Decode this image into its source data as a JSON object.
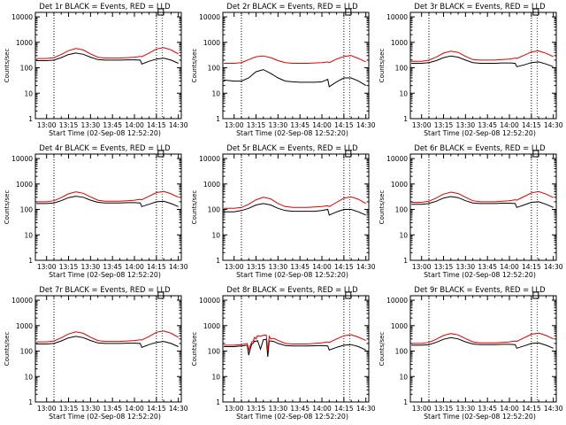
{
  "colors": {
    "events": "#000000",
    "lld": "#e00000",
    "background": "#ffffff"
  },
  "chart_data": [
    {
      "type": "line",
      "title": "Det 1r BLACK = Events, RED = LLD",
      "xlabel": "Start Time (02-Sep-08 12:52:20)",
      "ylabel": "Counts/sec",
      "log_y": true,
      "ylim": [
        1,
        15000
      ],
      "y_tick_labels": [
        "1",
        "10",
        "100",
        "1000",
        "10000"
      ],
      "xlim": [
        "12:52:20",
        "14:32:00"
      ],
      "x_tick_labels": [
        "13:00",
        "13:15",
        "13:30",
        "13:45",
        "14:00",
        "14:15",
        "14:30"
      ],
      "annotations": [
        "dashed vertical markers at 13:05, 14:15 (Events) and 14:19 (LLD)",
        "small square box near top at 14:18"
      ],
      "x": [
        "12:53",
        "13:00",
        "13:05",
        "13:10",
        "13:15",
        "13:20",
        "13:25",
        "13:30",
        "13:35",
        "13:40",
        "13:45",
        "13:50",
        "13:55",
        "14:00",
        "14:04",
        "14:05",
        "14:10",
        "14:15",
        "14:20",
        "14:25",
        "14:30"
      ],
      "series": [
        {
          "name": "Events",
          "values": [
            190,
            190,
            200,
            250,
            330,
            380,
            340,
            260,
            210,
            200,
            200,
            200,
            205,
            205,
            200,
            140,
            180,
            220,
            240,
            200,
            150
          ]
        },
        {
          "name": "LLD",
          "values": [
            230,
            230,
            250,
            330,
            470,
            570,
            500,
            350,
            260,
            240,
            240,
            240,
            250,
            260,
            280,
            270,
            380,
            550,
            620,
            500,
            350
          ]
        }
      ]
    },
    {
      "type": "line",
      "title": "Det 2r BLACK = Events, RED = LLD",
      "xlabel": "Start Time (02-Sep-08 12:52:20)",
      "ylabel": "Counts/sec",
      "log_y": true,
      "ylim": [
        1,
        15000
      ],
      "y_tick_labels": [
        "1",
        "10",
        "100",
        "1000",
        "10000"
      ],
      "xlim": [
        "12:52:20",
        "14:32:00"
      ],
      "x_tick_labels": [
        "13:00",
        "13:15",
        "13:30",
        "13:45",
        "14:00",
        "14:15",
        "14:30"
      ],
      "annotations": [
        "dashed vertical markers at 13:05, 14:15 (Events) and 14:19 (LLD)",
        "small square box near top at 14:18"
      ],
      "x": [
        "12:53",
        "13:00",
        "13:05",
        "13:10",
        "13:15",
        "13:20",
        "13:25",
        "13:30",
        "13:35",
        "13:40",
        "13:45",
        "13:50",
        "13:55",
        "14:00",
        "14:04",
        "14:05",
        "14:10",
        "14:15",
        "14:20",
        "14:25",
        "14:30"
      ],
      "series": [
        {
          "name": "Events",
          "values": [
            33,
            30,
            30,
            40,
            70,
            85,
            60,
            40,
            30,
            28,
            27,
            27,
            27,
            28,
            35,
            18,
            28,
            40,
            40,
            30,
            20
          ]
        },
        {
          "name": "LLD",
          "values": [
            150,
            150,
            160,
            210,
            270,
            290,
            250,
            190,
            160,
            150,
            150,
            150,
            155,
            160,
            170,
            160,
            220,
            280,
            300,
            230,
            170
          ]
        }
      ]
    },
    {
      "type": "line",
      "title": "Det 3r BLACK = Events, RED = LLD",
      "xlabel": "Start Time (02-Sep-08 12:52:20)",
      "ylabel": "Counts/sec",
      "log_y": true,
      "ylim": [
        1,
        15000
      ],
      "y_tick_labels": [
        "1",
        "10",
        "100",
        "1000",
        "10000"
      ],
      "xlim": [
        "12:52:20",
        "14:32:00"
      ],
      "x_tick_labels": [
        "13:00",
        "13:15",
        "13:30",
        "13:45",
        "14:00",
        "14:15",
        "14:30"
      ],
      "annotations": [
        "dashed vertical markers at 13:05, 14:15 (Events) and 14:19 (LLD)",
        "small square box near top at 14:18"
      ],
      "x": [
        "12:53",
        "13:00",
        "13:05",
        "13:10",
        "13:15",
        "13:20",
        "13:25",
        "13:30",
        "13:35",
        "13:40",
        "13:45",
        "13:50",
        "13:55",
        "14:00",
        "14:04",
        "14:05",
        "14:10",
        "14:15",
        "14:20",
        "14:25",
        "14:30"
      ],
      "series": [
        {
          "name": "Events",
          "values": [
            150,
            150,
            160,
            190,
            250,
            290,
            260,
            200,
            160,
            150,
            150,
            150,
            155,
            155,
            150,
            110,
            130,
            160,
            170,
            140,
            110
          ]
        },
        {
          "name": "LLD",
          "values": [
            180,
            180,
            200,
            260,
            380,
            450,
            400,
            280,
            210,
            200,
            200,
            200,
            210,
            220,
            240,
            230,
            310,
            420,
            460,
            370,
            270
          ]
        }
      ]
    },
    {
      "type": "line",
      "title": "Det 4r BLACK = Events, RED = LLD",
      "xlabel": "Start Time (02-Sep-08 12:52:20)",
      "ylabel": "Counts/sec",
      "log_y": true,
      "ylim": [
        1,
        15000
      ],
      "y_tick_labels": [
        "1",
        "10",
        "100",
        "1000",
        "10000"
      ],
      "xlim": [
        "12:52:20",
        "14:32:00"
      ],
      "x_tick_labels": [
        "13:00",
        "13:15",
        "13:30",
        "13:45",
        "14:00",
        "14:15",
        "14:30"
      ],
      "annotations": [
        "dashed vertical markers at 13:05, 14:15 (Events) and 14:19 (LLD)",
        "small square box near top at 14:18"
      ],
      "x": [
        "12:53",
        "13:00",
        "13:05",
        "13:10",
        "13:15",
        "13:20",
        "13:25",
        "13:30",
        "13:35",
        "13:40",
        "13:45",
        "13:50",
        "13:55",
        "14:00",
        "14:04",
        "14:05",
        "14:10",
        "14:15",
        "14:20",
        "14:25",
        "14:30"
      ],
      "series": [
        {
          "name": "Events",
          "values": [
            170,
            170,
            180,
            220,
            290,
            330,
            300,
            230,
            190,
            180,
            180,
            180,
            185,
            185,
            180,
            130,
            160,
            200,
            210,
            170,
            130
          ]
        },
        {
          "name": "LLD",
          "values": [
            200,
            200,
            220,
            290,
            410,
            490,
            430,
            310,
            230,
            210,
            210,
            210,
            220,
            230,
            250,
            240,
            330,
            460,
            510,
            410,
            300
          ]
        }
      ]
    },
    {
      "type": "line",
      "title": "Det 5r BLACK = Events, RED = LLD",
      "xlabel": "Start Time (02-Sep-08 12:52:20)",
      "ylabel": "Counts/sec",
      "log_y": true,
      "ylim": [
        1,
        15000
      ],
      "y_tick_labels": [
        "1",
        "10",
        "100",
        "1000",
        "10000"
      ],
      "xlim": [
        "12:52:20",
        "14:32:00"
      ],
      "x_tick_labels": [
        "13:00",
        "13:15",
        "13:30",
        "13:45",
        "14:00",
        "14:15",
        "14:30"
      ],
      "annotations": [
        "dashed vertical markers at 13:05, 14:15 (Events) and 14:19 (LLD)",
        "small square box near top at 14:18"
      ],
      "x": [
        "12:53",
        "13:00",
        "13:05",
        "13:10",
        "13:15",
        "13:20",
        "13:25",
        "13:30",
        "13:35",
        "13:40",
        "13:45",
        "13:50",
        "13:55",
        "14:00",
        "14:04",
        "14:05",
        "14:10",
        "14:15",
        "14:20",
        "14:25",
        "14:30"
      ],
      "series": [
        {
          "name": "Events",
          "values": [
            80,
            80,
            90,
            110,
            150,
            170,
            150,
            110,
            90,
            85,
            85,
            85,
            85,
            90,
            100,
            60,
            80,
            100,
            100,
            80,
            60
          ]
        },
        {
          "name": "LLD",
          "values": [
            110,
            110,
            120,
            160,
            240,
            300,
            260,
            170,
            130,
            120,
            120,
            120,
            125,
            130,
            140,
            130,
            190,
            280,
            310,
            250,
            170
          ]
        }
      ]
    },
    {
      "type": "line",
      "title": "Det 6r BLACK = Events, RED = LLD",
      "xlabel": "Start Time (02-Sep-08 12:52:20)",
      "ylabel": "Counts/sec",
      "log_y": true,
      "ylim": [
        1,
        15000
      ],
      "y_tick_labels": [
        "1",
        "10",
        "100",
        "1000",
        "10000"
      ],
      "xlim": [
        "12:52:20",
        "14:32:00"
      ],
      "x_tick_labels": [
        "13:00",
        "13:15",
        "13:30",
        "13:45",
        "14:00",
        "14:15",
        "14:30"
      ],
      "annotations": [
        "dashed vertical markers at 13:05, 14:15 (Events) and 14:19 (LLD)",
        "small square box near top at 14:18"
      ],
      "x": [
        "12:53",
        "13:00",
        "13:05",
        "13:10",
        "13:15",
        "13:20",
        "13:25",
        "13:30",
        "13:35",
        "13:40",
        "13:45",
        "13:50",
        "13:55",
        "14:00",
        "14:04",
        "14:05",
        "14:10",
        "14:15",
        "14:20",
        "14:25",
        "14:30"
      ],
      "series": [
        {
          "name": "Events",
          "values": [
            160,
            160,
            170,
            210,
            280,
            320,
            290,
            220,
            180,
            170,
            170,
            170,
            175,
            175,
            170,
            120,
            150,
            190,
            200,
            160,
            120
          ]
        },
        {
          "name": "LLD",
          "values": [
            190,
            190,
            210,
            280,
            400,
            480,
            420,
            300,
            220,
            200,
            200,
            200,
            210,
            220,
            240,
            230,
            320,
            450,
            500,
            400,
            290
          ]
        }
      ]
    },
    {
      "type": "line",
      "title": "Det 7r BLACK = Events, RED = LLD",
      "xlabel": "Start Time (02-Sep-08 12:52:20)",
      "ylabel": "Counts/sec",
      "log_y": true,
      "ylim": [
        1,
        15000
      ],
      "y_tick_labels": [
        "1",
        "10",
        "100",
        "1000",
        "10000"
      ],
      "xlim": [
        "12:52:20",
        "14:32:00"
      ],
      "x_tick_labels": [
        "13:00",
        "13:15",
        "13:30",
        "13:45",
        "14:00",
        "14:15",
        "14:30"
      ],
      "annotations": [
        "dashed vertical markers at 13:05, 14:15 (Events) and 14:19 (LLD)",
        "small square box near top at 14:18"
      ],
      "x": [
        "12:53",
        "13:00",
        "13:05",
        "13:10",
        "13:15",
        "13:20",
        "13:25",
        "13:30",
        "13:35",
        "13:40",
        "13:45",
        "13:50",
        "13:55",
        "14:00",
        "14:04",
        "14:05",
        "14:10",
        "14:15",
        "14:20",
        "14:25",
        "14:30"
      ],
      "series": [
        {
          "name": "Events",
          "values": [
            190,
            190,
            200,
            250,
            330,
            380,
            340,
            260,
            210,
            200,
            200,
            200,
            205,
            205,
            200,
            140,
            180,
            220,
            240,
            200,
            150
          ]
        },
        {
          "name": "LLD",
          "values": [
            230,
            230,
            250,
            330,
            470,
            570,
            500,
            350,
            260,
            240,
            240,
            240,
            250,
            260,
            280,
            270,
            380,
            550,
            620,
            500,
            350
          ]
        }
      ]
    },
    {
      "type": "line",
      "title": "Det 8r BLACK = Events, RED = LLD",
      "xlabel": "Start Time (02-Sep-08 12:52:20)",
      "ylabel": "Counts/sec",
      "log_y": true,
      "ylim": [
        1,
        15000
      ],
      "y_tick_labels": [
        "1",
        "10",
        "100",
        "1000",
        "10000"
      ],
      "xlim": [
        "12:52:20",
        "14:32:00"
      ],
      "x_tick_labels": [
        "13:00",
        "13:15",
        "13:30",
        "13:45",
        "14:00",
        "14:15",
        "14:30"
      ],
      "annotations": [
        "dashed vertical markers at 13:05, 14:15 (Events) and 14:19 (LLD)",
        "small square box near top at 14:18"
      ],
      "x": [
        "12:53",
        "13:00",
        "13:05",
        "13:09",
        "13:10",
        "13:12",
        "13:13",
        "13:14",
        "13:15",
        "13:16",
        "13:18",
        "13:20",
        "13:22",
        "13:23",
        "13:24",
        "13:25",
        "13:27",
        "13:30",
        "13:35",
        "13:40",
        "13:45",
        "13:50",
        "13:55",
        "14:00",
        "14:04",
        "14:05",
        "14:10",
        "14:15",
        "14:20",
        "14:25",
        "14:30"
      ],
      "series": [
        {
          "name": "Events",
          "values": [
            150,
            150,
            160,
            170,
            70,
            190,
            200,
            250,
            240,
            260,
            120,
            280,
            290,
            60,
            250,
            250,
            240,
            200,
            165,
            160,
            160,
            160,
            162,
            165,
            160,
            110,
            140,
            170,
            180,
            150,
            110
          ]
        },
        {
          "name": "LLD",
          "values": [
            170,
            170,
            180,
            200,
            110,
            230,
            240,
            350,
            300,
            400,
            380,
            420,
            430,
            100,
            380,
            300,
            320,
            260,
            200,
            190,
            190,
            190,
            200,
            210,
            230,
            220,
            300,
            400,
            440,
            350,
            260
          ]
        }
      ]
    },
    {
      "type": "line",
      "title": "Det 9r BLACK = Events, RED = LLD",
      "xlabel": "Start Time (02-Sep-08 12:52:20)",
      "ylabel": "Counts/sec",
      "log_y": true,
      "ylim": [
        1,
        15000
      ],
      "y_tick_labels": [
        "1",
        "10",
        "100",
        "1000",
        "10000"
      ],
      "xlim": [
        "12:52:20",
        "14:32:00"
      ],
      "x_tick_labels": [
        "13:00",
        "13:15",
        "13:30",
        "13:45",
        "14:00",
        "14:15",
        "14:30"
      ],
      "annotations": [
        "dashed vertical markers at 13:05, 14:15 (Events) and 14:19 (LLD)",
        "small square box near top at 14:18"
      ],
      "x": [
        "12:53",
        "13:00",
        "13:05",
        "13:10",
        "13:15",
        "13:20",
        "13:25",
        "13:30",
        "13:35",
        "13:40",
        "13:45",
        "13:50",
        "13:55",
        "14:00",
        "14:04",
        "14:05",
        "14:10",
        "14:15",
        "14:20",
        "14:25",
        "14:30"
      ],
      "series": [
        {
          "name": "Events",
          "values": [
            170,
            170,
            180,
            220,
            290,
            340,
            300,
            230,
            190,
            180,
            180,
            180,
            185,
            185,
            180,
            130,
            160,
            200,
            210,
            170,
            130
          ]
        },
        {
          "name": "LLD",
          "values": [
            200,
            200,
            220,
            290,
            410,
            490,
            430,
            310,
            230,
            210,
            210,
            210,
            220,
            230,
            250,
            240,
            330,
            460,
            510,
            410,
            300
          ]
        }
      ]
    }
  ]
}
